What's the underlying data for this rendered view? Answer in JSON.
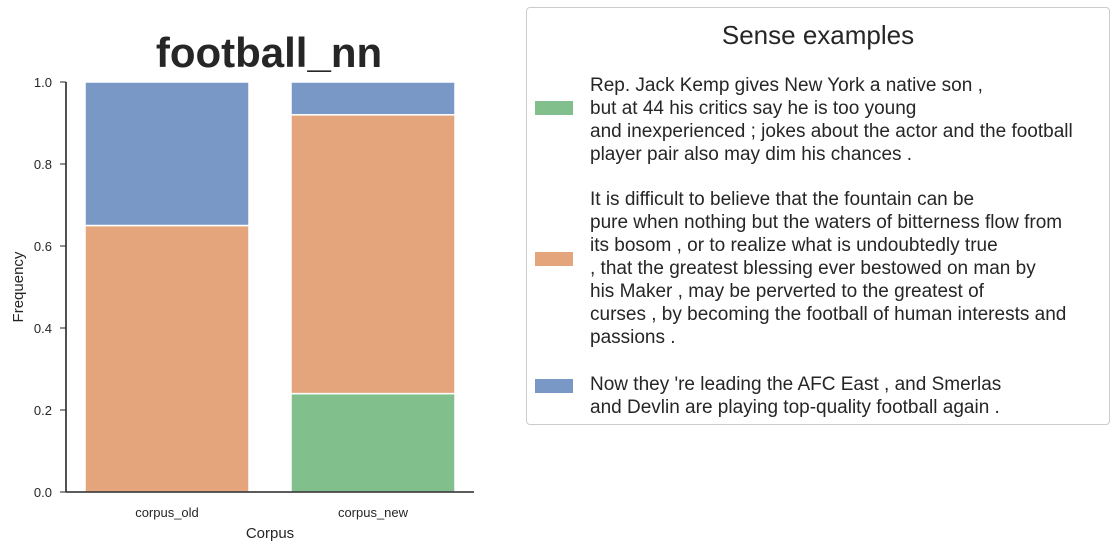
{
  "chart_data": {
    "type": "bar",
    "stacked": true,
    "title": "football_nn",
    "xlabel": "Corpus",
    "ylabel": "Frequency",
    "categories": [
      "corpus_old",
      "corpus_new"
    ],
    "ylim": [
      0,
      1.0
    ],
    "yticks": [
      "0.0",
      "0.2",
      "0.4",
      "0.6",
      "0.8",
      "1.0"
    ],
    "grid": false,
    "legend_placement": "right",
    "series": [
      {
        "color": "#81c08d",
        "values": [
          0.0,
          0.24
        ]
      },
      {
        "color": "#e4a47c",
        "values": [
          0.65,
          0.68
        ]
      },
      {
        "color": "#7a98c6",
        "values": [
          0.35,
          0.08
        ]
      }
    ]
  },
  "legend": {
    "title": "Sense examples",
    "entries": [
      {
        "color": "#81c08d",
        "text": "Rep. Jack Kemp gives New York a native son ,\nbut at 44 his critics say he is too young\nand inexperienced ; jokes about the actor and the football\nplayer pair also may dim his chances ."
      },
      {
        "color": "#e4a47c",
        "text": "It is difficult to believe that the fountain can be\npure when nothing but the waters of bitterness flow from\nits bosom , or to realize what is undoubtedly true\n, that the greatest blessing ever bestowed on man by\nhis Maker , may be perverted to the greatest of\ncurses , by becoming the football of human interests and\npassions ."
      },
      {
        "color": "#7a98c6",
        "text": "Now they 're leading the AFC East , and Smerlas\nand Devlin are playing top-quality football again ."
      }
    ]
  }
}
